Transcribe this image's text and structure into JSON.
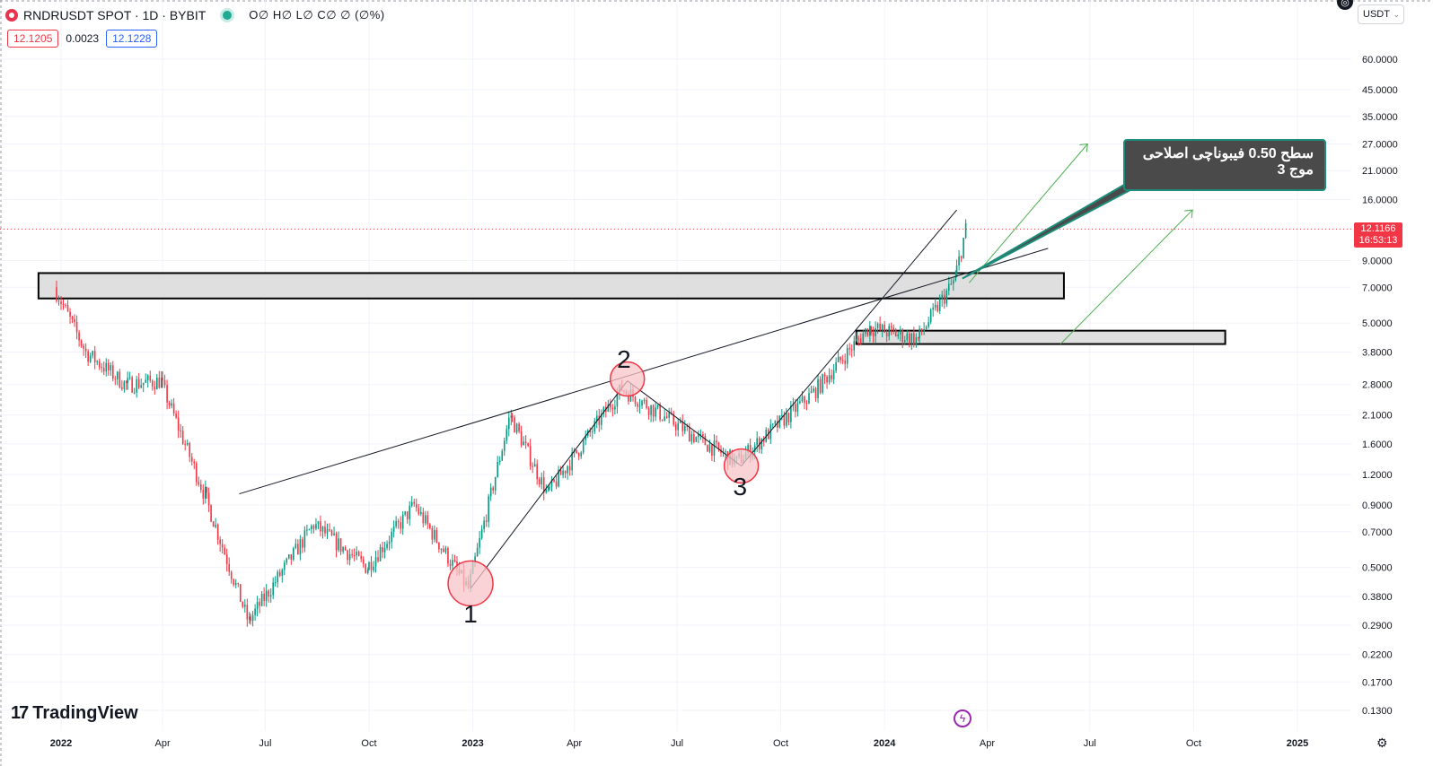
{
  "header": {
    "symbol": "RNDRUSDT SPOT · 1D · BYBIT",
    "ohlc": "O∅ H∅ L∅ C∅ ∅ (∅%)"
  },
  "prices": {
    "bid": "12.1205",
    "spread": "0.0023",
    "ask": "12.1228"
  },
  "currency_label": "USDT",
  "last_price": {
    "value": "12.1166",
    "countdown": "16:53:13"
  },
  "brand": "TradingView",
  "annotation": {
    "line1": "سطح 0.50 فیبوناچی اصلاحی",
    "line2": "موج 3"
  },
  "wave_labels": [
    "1",
    "2",
    "3"
  ],
  "colors": {
    "up": "#089981",
    "down": "#f23645",
    "accent": "#2962ff",
    "arrow": "#4caf50",
    "callout_border": "#1e8c7a"
  },
  "icons": [
    "chart-symbol-icon",
    "live-dot-icon",
    "flash-icon",
    "settings-gear-icon"
  ],
  "chart_data": {
    "type": "candlestick",
    "scale": "log",
    "y_ticks": [
      "60.0000",
      "45.0000",
      "35.0000",
      "27.0000",
      "21.0000",
      "16.0000",
      "9.0000",
      "7.0000",
      "5.0000",
      "3.8000",
      "2.8000",
      "2.1000",
      "1.6000",
      "1.2000",
      "0.9000",
      "0.7000",
      "0.5000",
      "0.3800",
      "0.2900",
      "0.2200",
      "0.1700",
      "0.1300"
    ],
    "x_ticks": [
      "2022",
      "Apr",
      "Jul",
      "Oct",
      "2023",
      "Apr",
      "Jul",
      "Oct",
      "2024",
      "Apr",
      "Jul",
      "Oct",
      "2025"
    ],
    "approx_path": [
      {
        "date": "2021-12-28",
        "price": 7.0
      },
      {
        "date": "2022-01-25",
        "price": 3.8
      },
      {
        "date": "2022-03-01",
        "price": 2.8
      },
      {
        "date": "2022-04-01",
        "price": 2.9
      },
      {
        "date": "2022-05-10",
        "price": 1.0
      },
      {
        "date": "2022-06-18",
        "price": 0.3
      },
      {
        "date": "2022-08-15",
        "price": 0.75
      },
      {
        "date": "2022-10-01",
        "price": 0.5
      },
      {
        "date": "2022-11-12",
        "price": 0.9
      },
      {
        "date": "2022-12-30",
        "price": 0.41
      },
      {
        "date": "2023-02-05",
        "price": 2.1
      },
      {
        "date": "2023-03-10",
        "price": 1.0
      },
      {
        "date": "2023-05-15",
        "price": 2.7
      },
      {
        "date": "2023-07-20",
        "price": 1.7
      },
      {
        "date": "2023-08-25",
        "price": 1.35
      },
      {
        "date": "2023-11-01",
        "price": 2.6
      },
      {
        "date": "2023-12-20",
        "price": 4.8
      },
      {
        "date": "2024-02-01",
        "price": 4.3
      },
      {
        "date": "2024-03-05",
        "price": 7.5
      },
      {
        "date": "2024-03-15",
        "price": 12.1
      }
    ]
  }
}
